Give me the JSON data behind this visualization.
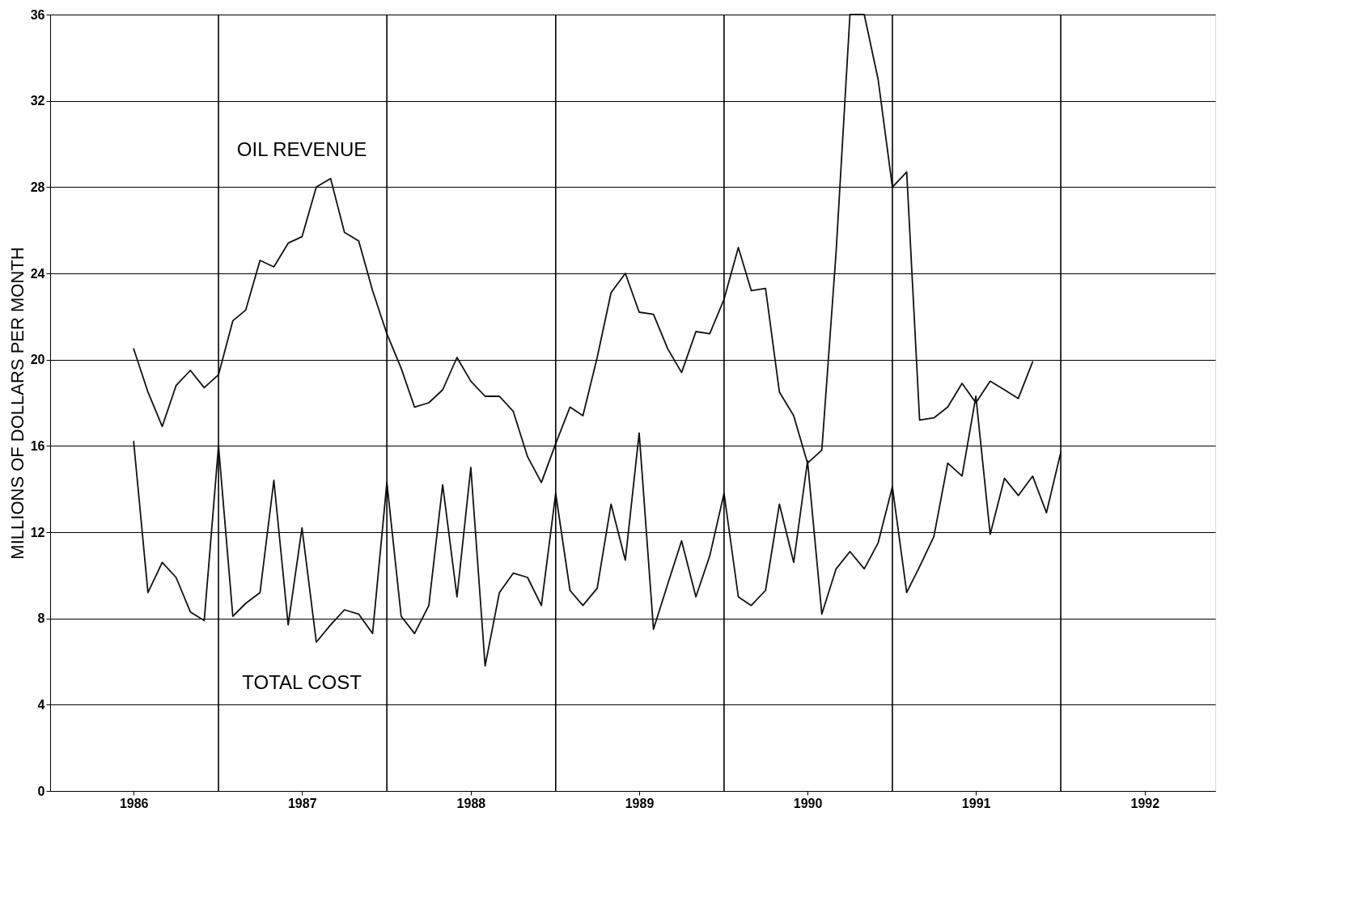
{
  "chart_data": {
    "type": "line",
    "ylabel": "MILLIONS OF DOLLARS PER MONTH",
    "xlim": [
      "1986-01",
      "1992-12"
    ],
    "xticks": [
      {
        "value": "1986-07",
        "label": "1986"
      },
      {
        "value": "1987-07",
        "label": "1987"
      },
      {
        "value": "1988-07",
        "label": "1988"
      },
      {
        "value": "1989-07",
        "label": "1989"
      },
      {
        "value": "1990-07",
        "label": "1990"
      },
      {
        "value": "1991-07",
        "label": "1991"
      },
      {
        "value": "1992-07",
        "label": "1992"
      }
    ],
    "ylim": [
      0,
      36
    ],
    "yticks": [
      0,
      4,
      8,
      12,
      16,
      20,
      24,
      28,
      32,
      36
    ],
    "grid": "y",
    "line_style": "solid",
    "ref_lines": [
      {
        "axis": "x",
        "value": "1987-01",
        "color": "#000000"
      },
      {
        "axis": "x",
        "value": "1988-01",
        "color": "#000000"
      },
      {
        "axis": "x",
        "value": "1989-01",
        "color": "#000000"
      },
      {
        "axis": "x",
        "value": "1990-01",
        "color": "#000000"
      },
      {
        "axis": "x",
        "value": "1991-01",
        "color": "#000000"
      },
      {
        "axis": "x",
        "value": "1992-01",
        "color": "#000000"
      }
    ],
    "annotations": [
      "OIL REVENUE",
      "TOTAL COST"
    ],
    "series": [
      {
        "color": "#111111",
        "x": [
          "1986-07",
          "1986-08",
          "1986-09",
          "1986-10",
          "1986-11",
          "1986-12",
          "1987-01",
          "1987-02",
          "1987-03",
          "1987-04",
          "1987-05",
          "1987-06",
          "1987-07",
          "1987-08",
          "1987-09",
          "1987-10",
          "1987-11",
          "1987-12",
          "1988-01",
          "1988-02",
          "1988-03",
          "1988-04",
          "1988-05",
          "1988-06",
          "1988-07",
          "1988-08",
          "1988-09",
          "1988-10",
          "1988-11",
          "1988-12",
          "1989-01",
          "1989-02",
          "1989-03",
          "1989-04",
          "1989-05",
          "1989-06",
          "1989-07",
          "1989-08",
          "1989-09",
          "1989-10",
          "1989-11",
          "1989-12",
          "1990-01",
          "1990-02",
          "1990-03",
          "1990-04",
          "1990-05",
          "1990-06",
          "1990-07",
          "1990-08",
          "1990-09",
          "1990-10",
          "1990-11",
          "1990-12",
          "1991-01",
          "1991-02",
          "1991-03",
          "1991-04",
          "1991-05",
          "1991-06",
          "1991-07",
          "1991-08",
          "1991-09",
          "1991-10",
          "1991-11"
        ],
        "values": [
          20.5,
          18.5,
          16.9,
          18.8,
          19.5,
          18.7,
          19.3,
          21.8,
          22.3,
          24.6,
          24.3,
          25.4,
          25.7,
          28.0,
          28.4,
          25.9,
          25.5,
          23.2,
          21.2,
          19.6,
          17.8,
          18.0,
          18.6,
          20.1,
          19.0,
          18.3,
          18.3,
          17.6,
          15.5,
          14.3,
          16.1,
          17.8,
          17.4,
          20.1,
          23.1,
          24.0,
          22.2,
          22.1,
          20.5,
          19.4,
          21.3,
          21.2,
          22.8,
          25.2,
          23.2,
          23.3,
          18.5,
          17.4,
          15.2,
          15.8,
          25.0,
          36,
          36,
          33.0,
          28.0,
          28.7,
          17.2,
          17.3,
          17.8,
          18.9,
          18.0,
          19.0,
          18.6,
          18.2,
          19.9
        ]
      },
      {
        "color": "#111111",
        "x": [
          "1986-07",
          "1986-08",
          "1986-09",
          "1986-10",
          "1986-11",
          "1986-12",
          "1987-01",
          "1987-02",
          "1987-03",
          "1987-04",
          "1987-05",
          "1987-06",
          "1987-07",
          "1987-08",
          "1987-09",
          "1987-10",
          "1987-11",
          "1987-12",
          "1988-01",
          "1988-02",
          "1988-03",
          "1988-04",
          "1988-05",
          "1988-06",
          "1988-07",
          "1988-08",
          "1988-09",
          "1988-10",
          "1988-11",
          "1988-12",
          "1989-01",
          "1989-02",
          "1989-03",
          "1989-04",
          "1989-05",
          "1989-06",
          "1989-07",
          "1989-08",
          "1989-09",
          "1989-10",
          "1989-11",
          "1989-12",
          "1990-01",
          "1990-02",
          "1990-03",
          "1990-04",
          "1990-05",
          "1990-06",
          "1990-07",
          "1990-08",
          "1990-09",
          "1990-10",
          "1990-11",
          "1990-12",
          "1991-01",
          "1991-02",
          "1991-03",
          "1991-04",
          "1991-05",
          "1991-06",
          "1991-07",
          "1991-08",
          "1991-09",
          "1991-10",
          "1991-11",
          "1991-12",
          "1992-01"
        ],
        "values": [
          16.2,
          9.2,
          10.6,
          9.9,
          8.3,
          7.9,
          16.0,
          8.1,
          8.7,
          9.2,
          14.4,
          7.7,
          12.2,
          6.9,
          7.7,
          8.4,
          8.2,
          7.3,
          14.3,
          8.1,
          7.3,
          8.6,
          14.2,
          9.0,
          15.0,
          5.8,
          9.2,
          10.1,
          9.9,
          8.6,
          13.8,
          9.3,
          8.6,
          9.4,
          13.3,
          10.7,
          16.6,
          7.5,
          9.6,
          11.6,
          9.0,
          10.9,
          13.8,
          9.0,
          8.6,
          9.3,
          13.3,
          10.6,
          15.3,
          8.2,
          10.3,
          11.1,
          10.3,
          11.5,
          14.1,
          9.2,
          10.4,
          11.8,
          15.2,
          14.6,
          18.3,
          11.9,
          14.5,
          13.7,
          14.6,
          12.9,
          15.7
        ]
      }
    ]
  }
}
